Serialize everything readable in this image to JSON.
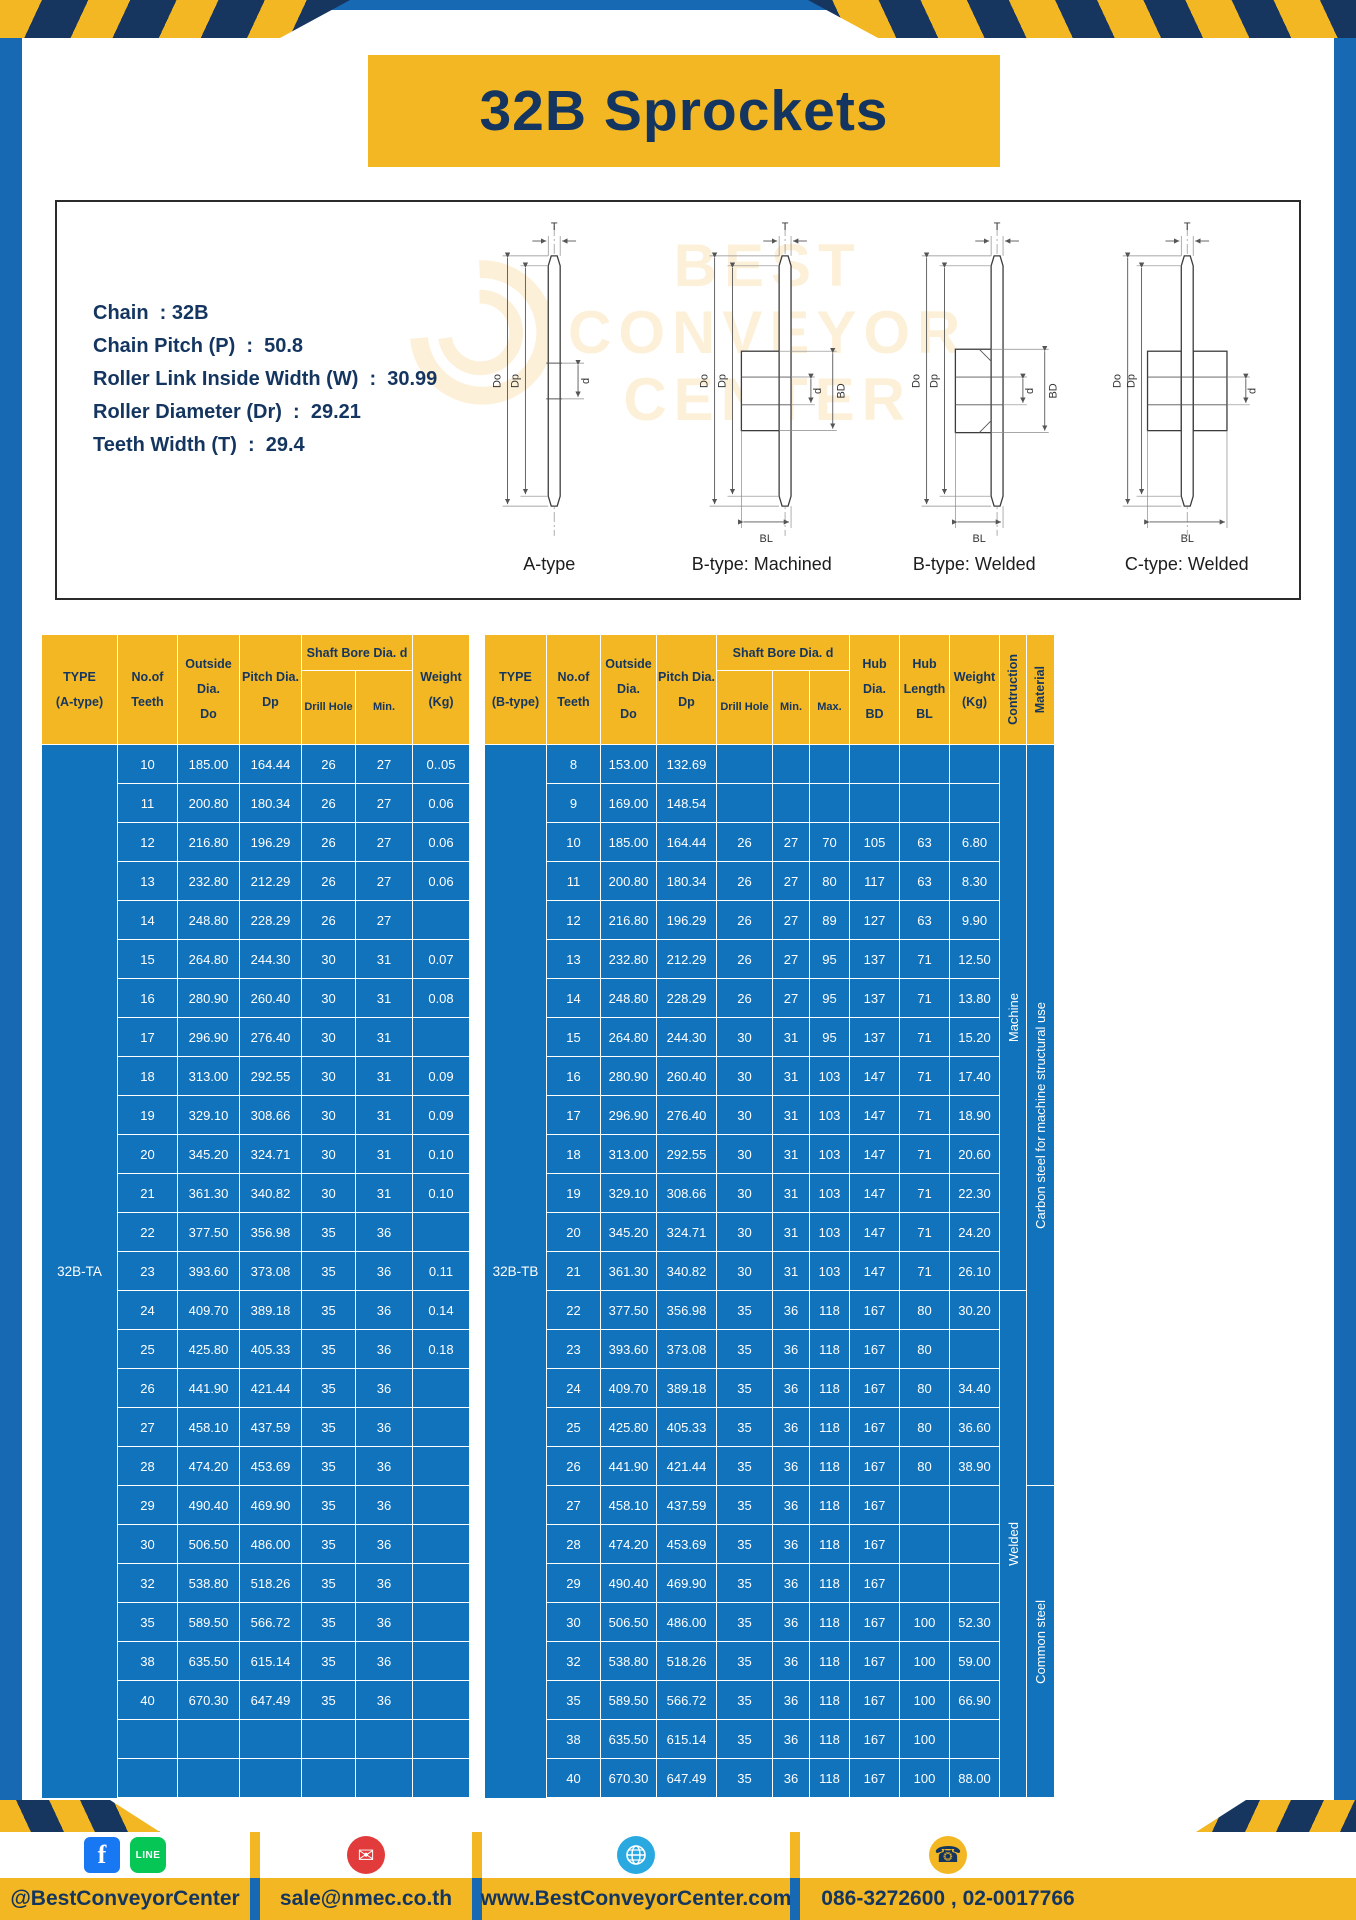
{
  "title": "32B Sprockets",
  "specs": {
    "lines": [
      "Chain  : 32B",
      "Chain Pitch (P)  :  50.8",
      "Roller Link Inside Width (W)  :  30.99",
      "Roller Diameter (Dr)  :  29.21",
      "Teeth Width (T)  :  29.4"
    ]
  },
  "watermark": "BEST\nCONVEYOR\nCENTER",
  "diagram_labels": [
    "A-type",
    "B-type: Machined",
    "B-type: Welded",
    "C-type: Welded"
  ],
  "dims": {
    "t": "T",
    "do_": "Do",
    "dp": "Dp",
    "d": "d",
    "bd": "BD",
    "bl": "BL"
  },
  "colors": {
    "frame_blue": "#1669b2",
    "gold": "#f2b722",
    "navy": "#14355f",
    "table_blue": "#1173bc"
  },
  "table_a": {
    "type_label": "32B-TA",
    "header": {
      "type": "TYPE\n(A-type)",
      "teeth": "No.of\nTeeth",
      "outside": "Outside\nDia.\nDo",
      "pitch": "Pitch Dia.\nDp",
      "shaft_group": "Shaft Bore Dia. d",
      "drill": "Drill Hole",
      "min": "Min.",
      "weight": "Weight\n(Kg)"
    },
    "rows": [
      [
        "10",
        "185.00",
        "164.44",
        "26",
        "27",
        "0..05"
      ],
      [
        "11",
        "200.80",
        "180.34",
        "26",
        "27",
        "0.06"
      ],
      [
        "12",
        "216.80",
        "196.29",
        "26",
        "27",
        "0.06"
      ],
      [
        "13",
        "232.80",
        "212.29",
        "26",
        "27",
        "0.06"
      ],
      [
        "14",
        "248.80",
        "228.29",
        "26",
        "27",
        ""
      ],
      [
        "15",
        "264.80",
        "244.30",
        "30",
        "31",
        "0.07"
      ],
      [
        "16",
        "280.90",
        "260.40",
        "30",
        "31",
        "0.08"
      ],
      [
        "17",
        "296.90",
        "276.40",
        "30",
        "31",
        ""
      ],
      [
        "18",
        "313.00",
        "292.55",
        "30",
        "31",
        "0.09"
      ],
      [
        "19",
        "329.10",
        "308.66",
        "30",
        "31",
        "0.09"
      ],
      [
        "20",
        "345.20",
        "324.71",
        "30",
        "31",
        "0.10"
      ],
      [
        "21",
        "361.30",
        "340.82",
        "30",
        "31",
        "0.10"
      ],
      [
        "22",
        "377.50",
        "356.98",
        "35",
        "36",
        ""
      ],
      [
        "23",
        "393.60",
        "373.08",
        "35",
        "36",
        "0.11"
      ],
      [
        "24",
        "409.70",
        "389.18",
        "35",
        "36",
        "0.14"
      ],
      [
        "25",
        "425.80",
        "405.33",
        "35",
        "36",
        "0.18"
      ],
      [
        "26",
        "441.90",
        "421.44",
        "35",
        "36",
        ""
      ],
      [
        "27",
        "458.10",
        "437.59",
        "35",
        "36",
        ""
      ],
      [
        "28",
        "474.20",
        "453.69",
        "35",
        "36",
        ""
      ],
      [
        "29",
        "490.40",
        "469.90",
        "35",
        "36",
        ""
      ],
      [
        "30",
        "506.50",
        "486.00",
        "35",
        "36",
        ""
      ],
      [
        "32",
        "538.80",
        "518.26",
        "35",
        "36",
        ""
      ],
      [
        "35",
        "589.50",
        "566.72",
        "35",
        "36",
        ""
      ],
      [
        "38",
        "635.50",
        "615.14",
        "35",
        "36",
        ""
      ],
      [
        "40",
        "670.30",
        "647.49",
        "35",
        "36",
        ""
      ],
      [
        "",
        "",
        "",
        "",
        "",
        ""
      ],
      [
        "",
        "",
        "",
        "",
        "",
        ""
      ]
    ]
  },
  "table_b": {
    "type_label": "32B-TB",
    "header": {
      "type": "TYPE\n(B-type)",
      "teeth": "No.of\nTeeth",
      "outside": "Outside\nDia.\nDo",
      "pitch": "Pitch Dia.\nDp",
      "shaft_group": "Shaft Bore Dia. d",
      "drill": "Drill Hole",
      "min": "Min.",
      "max": "Max.",
      "hub_dia": "Hub Dia.\nBD",
      "hub_len": "Hub\nLength\nBL",
      "weight": "Weight\n(Kg)",
      "construction": "Contruction",
      "material": "Material"
    },
    "rows": [
      [
        "8",
        "153.00",
        "132.69",
        "",
        "",
        "",
        "",
        "",
        ""
      ],
      [
        "9",
        "169.00",
        "148.54",
        "",
        "",
        "",
        "",
        "",
        ""
      ],
      [
        "10",
        "185.00",
        "164.44",
        "26",
        "27",
        "70",
        "105",
        "63",
        "6.80"
      ],
      [
        "11",
        "200.80",
        "180.34",
        "26",
        "27",
        "80",
        "117",
        "63",
        "8.30"
      ],
      [
        "12",
        "216.80",
        "196.29",
        "26",
        "27",
        "89",
        "127",
        "63",
        "9.90"
      ],
      [
        "13",
        "232.80",
        "212.29",
        "26",
        "27",
        "95",
        "137",
        "71",
        "12.50"
      ],
      [
        "14",
        "248.80",
        "228.29",
        "26",
        "27",
        "95",
        "137",
        "71",
        "13.80"
      ],
      [
        "15",
        "264.80",
        "244.30",
        "30",
        "31",
        "95",
        "137",
        "71",
        "15.20"
      ],
      [
        "16",
        "280.90",
        "260.40",
        "30",
        "31",
        "103",
        "147",
        "71",
        "17.40"
      ],
      [
        "17",
        "296.90",
        "276.40",
        "30",
        "31",
        "103",
        "147",
        "71",
        "18.90"
      ],
      [
        "18",
        "313.00",
        "292.55",
        "30",
        "31",
        "103",
        "147",
        "71",
        "20.60"
      ],
      [
        "19",
        "329.10",
        "308.66",
        "30",
        "31",
        "103",
        "147",
        "71",
        "22.30"
      ],
      [
        "20",
        "345.20",
        "324.71",
        "30",
        "31",
        "103",
        "147",
        "71",
        "24.20"
      ],
      [
        "21",
        "361.30",
        "340.82",
        "30",
        "31",
        "103",
        "147",
        "71",
        "26.10"
      ],
      [
        "22",
        "377.50",
        "356.98",
        "35",
        "36",
        "118",
        "167",
        "80",
        "30.20"
      ],
      [
        "23",
        "393.60",
        "373.08",
        "35",
        "36",
        "118",
        "167",
        "80",
        ""
      ],
      [
        "24",
        "409.70",
        "389.18",
        "35",
        "36",
        "118",
        "167",
        "80",
        "34.40"
      ],
      [
        "25",
        "425.80",
        "405.33",
        "35",
        "36",
        "118",
        "167",
        "80",
        "36.60"
      ],
      [
        "26",
        "441.90",
        "421.44",
        "35",
        "36",
        "118",
        "167",
        "80",
        "38.90"
      ],
      [
        "27",
        "458.10",
        "437.59",
        "35",
        "36",
        "118",
        "167",
        "",
        ""
      ],
      [
        "28",
        "474.20",
        "453.69",
        "35",
        "36",
        "118",
        "167",
        "",
        ""
      ],
      [
        "29",
        "490.40",
        "469.90",
        "35",
        "36",
        "118",
        "167",
        "",
        ""
      ],
      [
        "30",
        "506.50",
        "486.00",
        "35",
        "36",
        "118",
        "167",
        "100",
        "52.30"
      ],
      [
        "32",
        "538.80",
        "518.26",
        "35",
        "36",
        "118",
        "167",
        "100",
        "59.00"
      ],
      [
        "35",
        "589.50",
        "566.72",
        "35",
        "36",
        "118",
        "167",
        "100",
        "66.90"
      ],
      [
        "38",
        "635.50",
        "615.14",
        "35",
        "36",
        "118",
        "167",
        "100",
        ""
      ],
      [
        "40",
        "670.30",
        "647.49",
        "35",
        "36",
        "118",
        "167",
        "100",
        "88.00"
      ]
    ],
    "construction_segments": [
      {
        "label": "Machine",
        "rows": 14
      },
      {
        "label": "Welded",
        "rows": 13
      }
    ],
    "material_segments": [
      {
        "label": "Carbon steel for machine structural use",
        "rows": 19
      },
      {
        "label": "Common steel",
        "rows": 8
      }
    ]
  },
  "footer": {
    "fb_label": "f",
    "line_label": "LINE",
    "facebook": "@BestConveyorCenter",
    "email": "sale@nmec.co.th",
    "website": "www.BestConveyorCenter.com",
    "phone": "086-3272600 , 02-0017766"
  }
}
